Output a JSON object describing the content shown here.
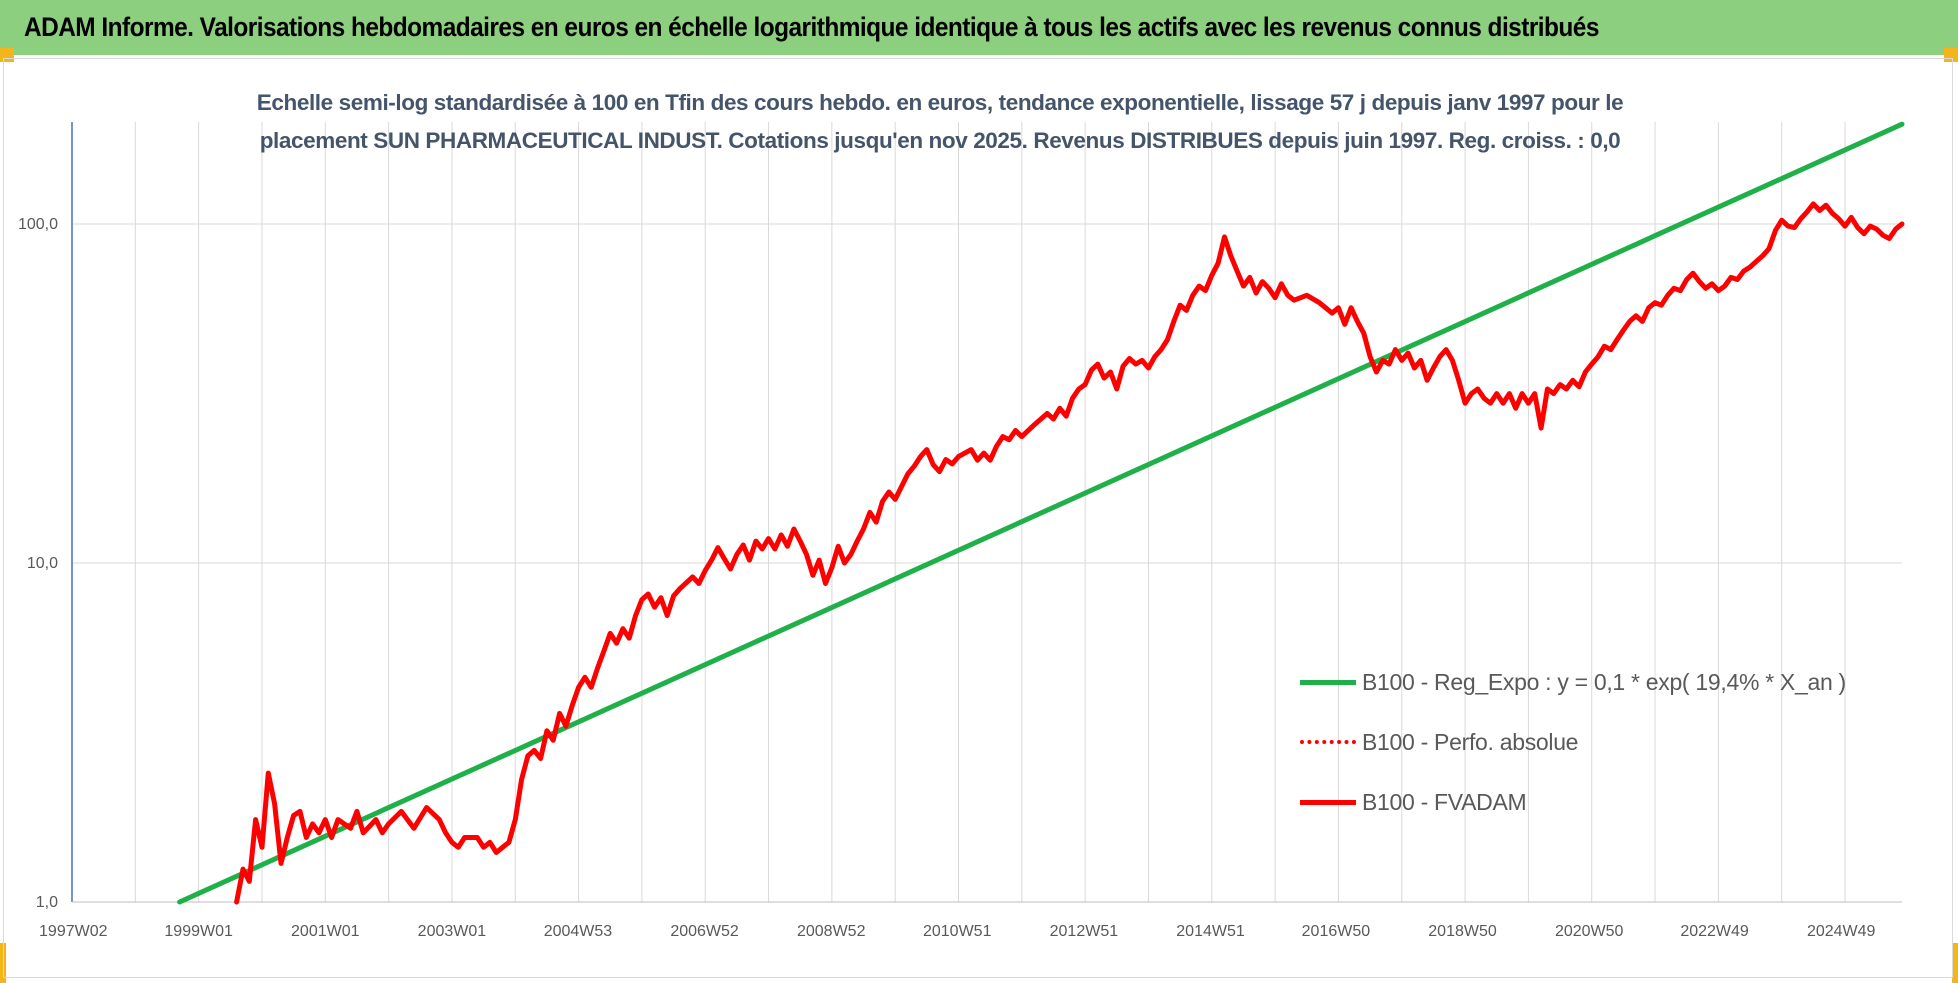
{
  "header": {
    "title": "ADAM Informe. Valorisations hebdomadaires en euros en échelle logarithmique identique à tous les actifs avec les revenus connus distribués"
  },
  "colors": {
    "header_bg": "#8ccf7e",
    "accent_corner": "#f2b51c",
    "trend": "#1fb04a",
    "fvadam": "#ff0000",
    "perf": "#ff0000",
    "grid": "#d9d9d9",
    "title_text": "#44546a"
  },
  "chart_data": {
    "type": "line",
    "title": "Echelle semi-log standardisée à 100 en Tfin des cours hebdo. en euros, tendance exponentielle, lissage 57 j depuis janv 1997 pour le placement SUN PHARMACEUTICAL INDUST. Cotations jusqu'en nov 2025. Revenus DISTRIBUES depuis juin 1997. Reg. croiss. : 0,0",
    "xlabel": "",
    "ylabel": "",
    "y_scale": "log",
    "ylim": [
      1,
      200
    ],
    "xlim": [
      1997.0,
      2025.9
    ],
    "grid": true,
    "legend_position": "bottom-right",
    "x_ticks": [
      {
        "label": "1997W02",
        "x": 1997.02
      },
      {
        "label": "1999W01",
        "x": 1999.0
      },
      {
        "label": "2001W01",
        "x": 2001.0
      },
      {
        "label": "2003W01",
        "x": 2003.0
      },
      {
        "label": "2004W53",
        "x": 2004.99
      },
      {
        "label": "2006W52",
        "x": 2006.99
      },
      {
        "label": "2008W52",
        "x": 2008.99
      },
      {
        "label": "2010W51",
        "x": 2010.98
      },
      {
        "label": "2012W51",
        "x": 2012.98
      },
      {
        "label": "2014W51",
        "x": 2014.98
      },
      {
        "label": "2016W50",
        "x": 2016.96
      },
      {
        "label": "2018W50",
        "x": 2018.96
      },
      {
        "label": "2020W50",
        "x": 2020.96
      },
      {
        "label": "2022W49",
        "x": 2022.94
      },
      {
        "label": "2024W49",
        "x": 2024.94
      }
    ],
    "y_ticks": [
      {
        "label": "1,0",
        "value": 1
      },
      {
        "label": "10,0",
        "value": 10
      },
      {
        "label": "100,0",
        "value": 100
      }
    ],
    "series": [
      {
        "name": "B100 - Reg_Expo : y = 0,1 * exp( 19,4% *  X_an )",
        "style": "solid",
        "color": "#1fb04a",
        "points": [
          [
            1998.7,
            1.0
          ],
          [
            2025.9,
            197
          ]
        ]
      },
      {
        "name": "B100 - Perfo. absolue",
        "style": "dotted",
        "color": "#ff0000",
        "points": []
      },
      {
        "name": "B100 - FVADAM",
        "style": "solid",
        "color": "#ff0000",
        "points": [
          [
            1999.6,
            1.0
          ],
          [
            1999.7,
            1.25
          ],
          [
            1999.8,
            1.15
          ],
          [
            1999.9,
            1.75
          ],
          [
            2000.0,
            1.45
          ],
          [
            2000.1,
            2.4
          ],
          [
            2000.2,
            1.95
          ],
          [
            2000.3,
            1.3
          ],
          [
            2000.4,
            1.55
          ],
          [
            2000.5,
            1.8
          ],
          [
            2000.6,
            1.85
          ],
          [
            2000.7,
            1.55
          ],
          [
            2000.8,
            1.7
          ],
          [
            2000.9,
            1.6
          ],
          [
            2001.0,
            1.75
          ],
          [
            2001.1,
            1.55
          ],
          [
            2001.2,
            1.75
          ],
          [
            2001.4,
            1.65
          ],
          [
            2001.5,
            1.85
          ],
          [
            2001.6,
            1.6
          ],
          [
            2001.8,
            1.75
          ],
          [
            2001.9,
            1.6
          ],
          [
            2002.0,
            1.7
          ],
          [
            2002.2,
            1.85
          ],
          [
            2002.4,
            1.65
          ],
          [
            2002.6,
            1.9
          ],
          [
            2002.8,
            1.75
          ],
          [
            2002.9,
            1.6
          ],
          [
            2003.0,
            1.5
          ],
          [
            2003.1,
            1.45
          ],
          [
            2003.2,
            1.55
          ],
          [
            2003.4,
            1.55
          ],
          [
            2003.5,
            1.45
          ],
          [
            2003.6,
            1.5
          ],
          [
            2003.7,
            1.4
          ],
          [
            2003.8,
            1.45
          ],
          [
            2003.9,
            1.5
          ],
          [
            2004.0,
            1.75
          ],
          [
            2004.1,
            2.3
          ],
          [
            2004.2,
            2.7
          ],
          [
            2004.3,
            2.8
          ],
          [
            2004.4,
            2.65
          ],
          [
            2004.5,
            3.2
          ],
          [
            2004.6,
            3.0
          ],
          [
            2004.7,
            3.6
          ],
          [
            2004.8,
            3.3
          ],
          [
            2004.9,
            3.8
          ],
          [
            2005.0,
            4.3
          ],
          [
            2005.1,
            4.6
          ],
          [
            2005.2,
            4.3
          ],
          [
            2005.3,
            4.9
          ],
          [
            2005.4,
            5.5
          ],
          [
            2005.5,
            6.2
          ],
          [
            2005.6,
            5.8
          ],
          [
            2005.7,
            6.4
          ],
          [
            2005.8,
            6.0
          ],
          [
            2005.9,
            7.0
          ],
          [
            2006.0,
            7.8
          ],
          [
            2006.1,
            8.1
          ],
          [
            2006.2,
            7.4
          ],
          [
            2006.3,
            7.9
          ],
          [
            2006.4,
            7.0
          ],
          [
            2006.5,
            8.0
          ],
          [
            2006.6,
            8.4
          ],
          [
            2006.8,
            9.1
          ],
          [
            2006.9,
            8.7
          ],
          [
            2007.0,
            9.5
          ],
          [
            2007.1,
            10.2
          ],
          [
            2007.2,
            11.1
          ],
          [
            2007.3,
            10.3
          ],
          [
            2007.4,
            9.6
          ],
          [
            2007.5,
            10.6
          ],
          [
            2007.6,
            11.3
          ],
          [
            2007.7,
            10.2
          ],
          [
            2007.8,
            11.6
          ],
          [
            2007.9,
            11.0
          ],
          [
            2008.0,
            11.8
          ],
          [
            2008.1,
            11.0
          ],
          [
            2008.2,
            12.1
          ],
          [
            2008.3,
            11.2
          ],
          [
            2008.4,
            12.6
          ],
          [
            2008.5,
            11.6
          ],
          [
            2008.6,
            10.6
          ],
          [
            2008.7,
            9.2
          ],
          [
            2008.8,
            10.2
          ],
          [
            2008.9,
            8.7
          ],
          [
            2009.0,
            9.7
          ],
          [
            2009.1,
            11.2
          ],
          [
            2009.2,
            10.0
          ],
          [
            2009.3,
            10.6
          ],
          [
            2009.4,
            11.6
          ],
          [
            2009.5,
            12.6
          ],
          [
            2009.6,
            14.1
          ],
          [
            2009.7,
            13.2
          ],
          [
            2009.8,
            15.2
          ],
          [
            2009.9,
            16.2
          ],
          [
            2010.0,
            15.4
          ],
          [
            2010.1,
            16.8
          ],
          [
            2010.2,
            18.3
          ],
          [
            2010.3,
            19.3
          ],
          [
            2010.4,
            20.6
          ],
          [
            2010.5,
            21.6
          ],
          [
            2010.6,
            19.5
          ],
          [
            2010.7,
            18.6
          ],
          [
            2010.8,
            20.2
          ],
          [
            2010.9,
            19.6
          ],
          [
            2011.0,
            20.6
          ],
          [
            2011.2,
            21.6
          ],
          [
            2011.3,
            20.1
          ],
          [
            2011.4,
            21.1
          ],
          [
            2011.5,
            20.1
          ],
          [
            2011.6,
            22.1
          ],
          [
            2011.7,
            23.6
          ],
          [
            2011.8,
            23.1
          ],
          [
            2011.9,
            24.6
          ],
          [
            2012.0,
            23.6
          ],
          [
            2012.2,
            25.6
          ],
          [
            2012.4,
            27.6
          ],
          [
            2012.5,
            26.6
          ],
          [
            2012.6,
            28.6
          ],
          [
            2012.7,
            27.1
          ],
          [
            2012.8,
            30.6
          ],
          [
            2012.9,
            32.6
          ],
          [
            2013.0,
            33.6
          ],
          [
            2013.1,
            37.1
          ],
          [
            2013.2,
            38.6
          ],
          [
            2013.3,
            35.1
          ],
          [
            2013.4,
            36.6
          ],
          [
            2013.5,
            32.6
          ],
          [
            2013.6,
            38.1
          ],
          [
            2013.7,
            40.1
          ],
          [
            2013.8,
            38.6
          ],
          [
            2013.9,
            39.6
          ],
          [
            2014.0,
            37.6
          ],
          [
            2014.1,
            40.6
          ],
          [
            2014.2,
            42.6
          ],
          [
            2014.3,
            45.6
          ],
          [
            2014.4,
            51.6
          ],
          [
            2014.5,
            57.6
          ],
          [
            2014.6,
            55.6
          ],
          [
            2014.7,
            61.6
          ],
          [
            2014.8,
            65.6
          ],
          [
            2014.9,
            63.6
          ],
          [
            2015.0,
            70.6
          ],
          [
            2015.1,
            76.6
          ],
          [
            2015.2,
            91.6
          ],
          [
            2015.3,
            80.6
          ],
          [
            2015.4,
            72.6
          ],
          [
            2015.5,
            65.6
          ],
          [
            2015.6,
            69.6
          ],
          [
            2015.7,
            62.6
          ],
          [
            2015.8,
            67.6
          ],
          [
            2015.9,
            64.6
          ],
          [
            2016.0,
            60.6
          ],
          [
            2016.1,
            66.6
          ],
          [
            2016.2,
            61.6
          ],
          [
            2016.3,
            59.6
          ],
          [
            2016.5,
            61.6
          ],
          [
            2016.7,
            58.6
          ],
          [
            2016.9,
            54.6
          ],
          [
            2017.0,
            56.6
          ],
          [
            2017.1,
            50.6
          ],
          [
            2017.2,
            56.6
          ],
          [
            2017.3,
            51.6
          ],
          [
            2017.4,
            47.6
          ],
          [
            2017.5,
            40.6
          ],
          [
            2017.6,
            36.6
          ],
          [
            2017.7,
            39.6
          ],
          [
            2017.8,
            38.6
          ],
          [
            2017.9,
            42.6
          ],
          [
            2018.0,
            39.6
          ],
          [
            2018.1,
            41.6
          ],
          [
            2018.2,
            37.6
          ],
          [
            2018.3,
            39.6
          ],
          [
            2018.4,
            34.6
          ],
          [
            2018.5,
            37.6
          ],
          [
            2018.6,
            40.6
          ],
          [
            2018.7,
            42.6
          ],
          [
            2018.8,
            39.6
          ],
          [
            2018.9,
            34.6
          ],
          [
            2019.0,
            29.6
          ],
          [
            2019.1,
            31.6
          ],
          [
            2019.2,
            32.6
          ],
          [
            2019.3,
            30.6
          ],
          [
            2019.4,
            29.6
          ],
          [
            2019.5,
            31.6
          ],
          [
            2019.6,
            29.6
          ],
          [
            2019.7,
            31.6
          ],
          [
            2019.8,
            28.6
          ],
          [
            2019.9,
            31.6
          ],
          [
            2020.0,
            29.6
          ],
          [
            2020.1,
            31.6
          ],
          [
            2020.2,
            25.0
          ],
          [
            2020.3,
            32.6
          ],
          [
            2020.4,
            31.6
          ],
          [
            2020.5,
            33.6
          ],
          [
            2020.6,
            32.6
          ],
          [
            2020.7,
            34.6
          ],
          [
            2020.8,
            33.1
          ],
          [
            2020.9,
            36.6
          ],
          [
            2021.0,
            38.6
          ],
          [
            2021.1,
            40.6
          ],
          [
            2021.2,
            43.6
          ],
          [
            2021.3,
            42.6
          ],
          [
            2021.4,
            45.6
          ],
          [
            2021.5,
            48.6
          ],
          [
            2021.6,
            51.6
          ],
          [
            2021.7,
            53.6
          ],
          [
            2021.8,
            51.6
          ],
          [
            2021.9,
            56.6
          ],
          [
            2022.0,
            58.6
          ],
          [
            2022.1,
            57.6
          ],
          [
            2022.2,
            61.6
          ],
          [
            2022.3,
            64.6
          ],
          [
            2022.4,
            63.6
          ],
          [
            2022.5,
            68.6
          ],
          [
            2022.6,
            71.6
          ],
          [
            2022.7,
            67.6
          ],
          [
            2022.8,
            64.6
          ],
          [
            2022.9,
            66.6
          ],
          [
            2023.0,
            63.6
          ],
          [
            2023.1,
            65.6
          ],
          [
            2023.2,
            69.6
          ],
          [
            2023.3,
            68.6
          ],
          [
            2023.4,
            72.6
          ],
          [
            2023.5,
            74.6
          ],
          [
            2023.6,
            77.6
          ],
          [
            2023.7,
            80.6
          ],
          [
            2023.8,
            84.6
          ],
          [
            2023.9,
            95.6
          ],
          [
            2024.0,
            102.6
          ],
          [
            2024.1,
            98.6
          ],
          [
            2024.2,
            97.6
          ],
          [
            2024.3,
            103.6
          ],
          [
            2024.4,
            108.6
          ],
          [
            2024.5,
            114.6
          ],
          [
            2024.6,
            109.6
          ],
          [
            2024.7,
            113.6
          ],
          [
            2024.8,
            107.6
          ],
          [
            2024.9,
            103.6
          ],
          [
            2025.0,
            98.6
          ],
          [
            2025.1,
            104.6
          ],
          [
            2025.2,
            97.6
          ],
          [
            2025.3,
            93.6
          ],
          [
            2025.4,
            98.6
          ],
          [
            2025.5,
            96.6
          ],
          [
            2025.6,
            92.6
          ],
          [
            2025.7,
            90.6
          ],
          [
            2025.8,
            96.6
          ],
          [
            2025.9,
            100.0
          ]
        ]
      }
    ]
  }
}
